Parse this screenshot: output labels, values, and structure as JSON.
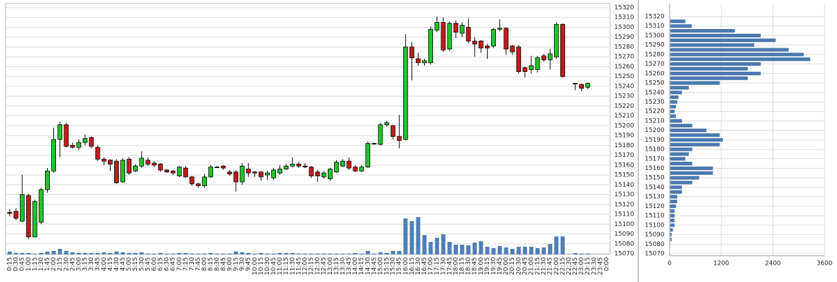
{
  "chart_data": [
    {
      "type": "candlestick",
      "categories": [
        "0:15",
        "0:30",
        "0:45",
        "1:00",
        "1:15",
        "1:30",
        "1:45",
        "2:00",
        "2:15",
        "2:30",
        "2:45",
        "3:00",
        "3:15",
        "3:30",
        "3:45",
        "4:00",
        "4:15",
        "4:30",
        "4:45",
        "5:00",
        "5:15",
        "5:30",
        "5:45",
        "6:00",
        "6:15",
        "6:30",
        "6:45",
        "7:00",
        "7:15",
        "7:30",
        "7:45",
        "8:00",
        "8:15",
        "8:30",
        "8:45",
        "9:00",
        "9:15",
        "9:30",
        "9:45",
        "10:00",
        "10:15",
        "10:30",
        "10:45",
        "11:00",
        "11:15",
        "11:30",
        "11:45",
        "12:00",
        "12:15",
        "12:30",
        "12:45",
        "13:00",
        "13:15",
        "13:30",
        "13:45",
        "14:00",
        "14:15",
        "14:30",
        "14:45",
        "15:00",
        "15:15",
        "15:30",
        "15:45",
        "16:00",
        "16:15",
        "16:30",
        "16:45",
        "17:00",
        "17:15",
        "17:30",
        "17:45",
        "18:00",
        "18:15",
        "18:30",
        "18:45",
        "19:00",
        "19:15",
        "19:30",
        "19:45",
        "20:00",
        "20:15",
        "20:30",
        "20:45",
        "21:00",
        "21:15",
        "21:30",
        "21:45",
        "22:00",
        "22:15",
        "22:30",
        "22:45",
        "23:00",
        "23:15",
        "23:30",
        "23:45",
        "0:00"
      ],
      "open": [
        15112,
        15113,
        15103,
        15129,
        15087,
        15102,
        15135,
        15154,
        15186,
        15201,
        15180,
        15178,
        15183,
        15188,
        15178,
        15166,
        15165,
        15164,
        15143,
        15166,
        15154,
        15159,
        15165,
        15162,
        15161,
        15155,
        15154,
        15149,
        15157,
        15148,
        15141,
        15139,
        15148,
        15158,
        15159,
        15153,
        15153,
        15143,
        15156,
        15153,
        15153,
        15150,
        15147,
        15152,
        15156,
        15159,
        15161,
        15159,
        15158,
        15153,
        15148,
        15146,
        15153,
        15159,
        15164,
        15158,
        15154,
        15158,
        15182,
        15181,
        15201,
        15200,
        15189,
        15186,
        15280,
        15268,
        15264,
        15264,
        15297,
        15305,
        15278,
        15304,
        15294,
        15300,
        15286,
        15286,
        15281,
        15281,
        15298,
        15299,
        15281,
        15280,
        15259,
        15257,
        15257,
        15271,
        15267,
        15270,
        15303,
        null,
        15243,
        15242,
        15239,
        null,
        null,
        null
      ],
      "high": [
        15115,
        15116,
        15150,
        15131,
        15125,
        15137,
        15157,
        15198,
        15204,
        15203,
        15183,
        15186,
        15191,
        15189,
        15180,
        15168,
        15166,
        15166,
        15167,
        15168,
        15161,
        15174,
        15168,
        15164,
        15162,
        15156,
        15155,
        15159,
        15159,
        15149,
        15142,
        15151,
        15160,
        15159,
        15160,
        15155,
        15155,
        15162,
        15162,
        15154,
        15154,
        15154,
        15157,
        15160,
        15161,
        15168,
        15163,
        15162,
        15159,
        15155,
        15154,
        15157,
        15165,
        15166,
        15168,
        15160,
        15160,
        15184,
        15183,
        15203,
        15205,
        15201,
        15211,
        15293,
        15285,
        15274,
        15268,
        15301,
        15311,
        15310,
        15306,
        15307,
        15305,
        15309,
        15290,
        15287,
        15283,
        15299,
        15308,
        15300,
        15282,
        15282,
        15260,
        15271,
        15271,
        15273,
        15278,
        15305,
        15304,
        null,
        15243,
        15243,
        15244,
        null,
        null,
        null
      ],
      "low": [
        15108,
        15104,
        15102,
        15085,
        15087,
        15100,
        15132,
        15152,
        15168,
        15178,
        15177,
        15175,
        15180,
        15177,
        15164,
        15160,
        15154,
        15141,
        15142,
        15150,
        15153,
        15157,
        15159,
        15158,
        15153,
        15152,
        15150,
        15148,
        15147,
        15139,
        15137,
        15137,
        15147,
        15157,
        15155,
        15149,
        15133,
        15140,
        15148,
        15148,
        15144,
        15145,
        15145,
        15150,
        15155,
        15158,
        15157,
        15157,
        15147,
        15143,
        15146,
        15144,
        15152,
        15158,
        15155,
        15153,
        15153,
        15157,
        15181,
        15180,
        15199,
        15186,
        15177,
        15185,
        15246,
        15261,
        15261,
        15262,
        15295,
        15275,
        15276,
        15289,
        15290,
        15284,
        15270,
        15274,
        15268,
        15279,
        15296,
        15272,
        15272,
        15253,
        15249,
        15253,
        15254,
        15265,
        15257,
        15268,
        15249,
        null,
        15236,
        15235,
        15237,
        null,
        null,
        null
      ],
      "close": [
        15111,
        15106,
        15130,
        15087,
        15123,
        15135,
        15154,
        15186,
        15201,
        15179,
        15178,
        15183,
        15187,
        15179,
        15166,
        15164,
        15161,
        15142,
        15165,
        15152,
        15159,
        15167,
        15161,
        15160,
        15155,
        15153,
        15152,
        15158,
        15148,
        15141,
        15139,
        15148,
        15158,
        15158,
        15157,
        15151,
        15143,
        15159,
        15152,
        15152,
        15148,
        15152,
        15155,
        15156,
        15159,
        15161,
        15159,
        15158,
        15149,
        15149,
        15152,
        15156,
        15163,
        15164,
        15157,
        15154,
        15158,
        15182,
        15182,
        15201,
        15203,
        15189,
        15185,
        15280,
        15269,
        15264,
        15266,
        15298,
        15305,
        15277,
        15304,
        15295,
        15302,
        15286,
        15283,
        15279,
        15279,
        15298,
        15299,
        15278,
        15275,
        15255,
        15255,
        15261,
        15269,
        15267,
        15273,
        15303,
        15250,
        null,
        15243,
        15238,
        15243,
        null,
        null,
        null
      ],
      "volume": [
        4,
        2,
        2,
        2,
        1,
        2,
        4,
        5,
        8,
        5,
        3,
        2,
        2,
        2,
        2,
        3,
        2,
        4,
        3,
        2,
        2,
        3,
        1,
        1,
        2,
        1,
        1,
        2,
        2,
        1,
        1,
        1,
        2,
        1,
        1,
        1,
        4,
        3,
        2,
        1,
        2,
        1,
        1,
        2,
        2,
        2,
        1,
        1,
        1,
        1,
        1,
        1,
        1,
        1,
        1,
        2,
        1,
        5,
        1,
        3,
        2,
        5,
        5,
        52,
        48,
        54,
        28,
        18,
        24,
        29,
        18,
        14,
        14,
        13,
        17,
        19,
        11,
        9,
        12,
        10,
        8,
        11,
        11,
        11,
        9,
        10,
        15,
        26,
        26,
        null,
        2,
        1,
        1,
        null,
        null,
        null
      ],
      "up_color": "#22c32b",
      "down_color": "#c51b1b",
      "volume_color": "#4f7fb8",
      "ylim": [
        15070,
        15320
      ],
      "yticks": [
        15070,
        15080,
        15090,
        15100,
        15110,
        15120,
        15130,
        15140,
        15150,
        15160,
        15170,
        15180,
        15190,
        15200,
        15210,
        15220,
        15230,
        15240,
        15250,
        15260,
        15270,
        15280,
        15290,
        15300,
        15310,
        15320
      ],
      "grid": true
    },
    {
      "type": "hbar",
      "y": [
        15315,
        15310,
        15305,
        15300,
        15295,
        15290,
        15285,
        15280,
        15275,
        15270,
        15265,
        15260,
        15255,
        15250,
        15245,
        15240,
        15235,
        15230,
        15225,
        15220,
        15215,
        15210,
        15205,
        15200,
        15195,
        15190,
        15185,
        15180,
        15175,
        15170,
        15165,
        15160,
        15155,
        15150,
        15145,
        15140,
        15135,
        15130,
        15125,
        15120,
        15115,
        15110,
        15105,
        15100,
        15095,
        15090,
        15085
      ],
      "values": [
        350,
        500,
        1500,
        2100,
        2450,
        1950,
        2750,
        3100,
        3250,
        2100,
        1800,
        2100,
        1800,
        1150,
        430,
        270,
        190,
        160,
        130,
        100,
        130,
        270,
        510,
        840,
        1150,
        1220,
        1150,
        510,
        430,
        350,
        510,
        990,
        990,
        670,
        510,
        270,
        270,
        160,
        160,
        130,
        100,
        100,
        100,
        100,
        60,
        30,
        30
      ],
      "color": "#4a78ae",
      "ylim": [
        15070,
        15320
      ],
      "yticks": [
        15070,
        15080,
        15090,
        15100,
        15110,
        15120,
        15130,
        15140,
        15150,
        15160,
        15170,
        15180,
        15190,
        15200,
        15210,
        15220,
        15230,
        15240,
        15250,
        15260,
        15270,
        15280,
        15290,
        15300,
        15310,
        15320
      ],
      "xlim": [
        0,
        3600
      ],
      "xticks": [
        0,
        1200,
        2400,
        3600
      ],
      "grid": true
    }
  ]
}
